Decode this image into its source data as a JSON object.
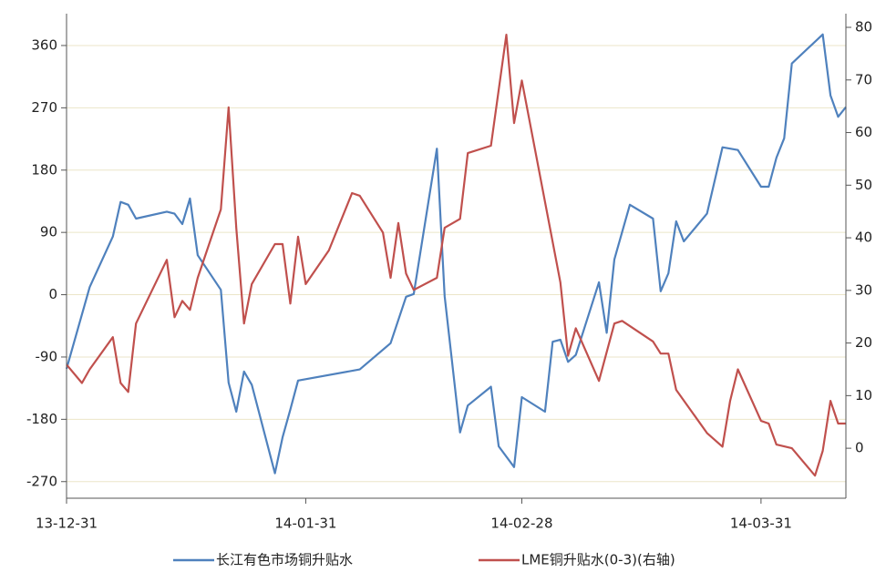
{
  "chart_data": {
    "type": "line",
    "xticks": [
      "13-12-31",
      "14-01-31",
      "14-02-28",
      "14-03-31"
    ],
    "xlim": [
      "13-12-31",
      "14-04-11"
    ],
    "ylim": [
      -294,
      406
    ],
    "yticks": [
      -270,
      -180,
      -90,
      0,
      90,
      180,
      270,
      360
    ],
    "y2lim": [
      -9.5,
      82.6
    ],
    "y2ticks": [
      0,
      10,
      20,
      30,
      40,
      50,
      60,
      70,
      80
    ],
    "grid": true,
    "legend": "bottom",
    "series": [
      {
        "name": "长江有色市场铜升贴水",
        "color": "#4f81bd",
        "x": [
          "13-12-31",
          "14-01-03",
          "14-01-06",
          "14-01-07",
          "14-01-08",
          "14-01-09",
          "14-01-13",
          "14-01-14",
          "14-01-15",
          "14-01-16",
          "14-01-17",
          "14-01-20",
          "14-01-21",
          "14-01-22",
          "14-01-23",
          "14-01-24",
          "14-01-27",
          "14-01-28",
          "14-01-29",
          "14-01-30",
          "14-02-07",
          "14-02-11",
          "14-02-13",
          "14-02-14",
          "14-02-17",
          "14-02-18",
          "14-02-20",
          "14-02-21",
          "14-02-24",
          "14-02-25",
          "14-02-27",
          "14-02-28",
          "14-03-03",
          "14-03-04",
          "14-03-05",
          "14-03-06",
          "14-03-07",
          "14-03-10",
          "14-03-11",
          "14-03-12",
          "14-03-14",
          "14-03-17",
          "14-03-18",
          "14-03-19",
          "14-03-20",
          "14-03-21",
          "14-03-24",
          "14-03-26",
          "14-03-28",
          "14-03-31",
          "14-04-01",
          "14-04-02",
          "14-04-03",
          "14-04-04",
          "14-04-08",
          "14-04-09",
          "14-04-10",
          "14-04-11"
        ],
        "values": [
          -107,
          11,
          84,
          134,
          130,
          110,
          120,
          117,
          102,
          139,
          57,
          7,
          -127,
          -169,
          -111,
          -130,
          -258,
          -206,
          -166,
          -124,
          -108,
          -70,
          -3,
          1,
          211,
          -2,
          -199,
          -160,
          -133,
          -219,
          -249,
          -148,
          -169,
          -68,
          -65,
          -97,
          -87,
          18,
          -55,
          51,
          130,
          110,
          5,
          31,
          106,
          77,
          117,
          213,
          209,
          156,
          156,
          198,
          226,
          334,
          376,
          288,
          257,
          271
        ]
      },
      {
        "name": "LME铜升贴水(0-3)(右轴)",
        "color": "#c0504d",
        "axis": "y2",
        "x": [
          "13-12-31",
          "14-01-02",
          "14-01-03",
          "14-01-06",
          "14-01-07",
          "14-01-08",
          "14-01-09",
          "14-01-13",
          "14-01-14",
          "14-01-15",
          "14-01-16",
          "14-01-17",
          "14-01-20",
          "14-01-21",
          "14-01-22",
          "14-01-23",
          "14-01-24",
          "14-01-27",
          "14-01-28",
          "14-01-29",
          "14-01-30",
          "14-01-31",
          "14-02-03",
          "14-02-06",
          "14-02-07",
          "14-02-10",
          "14-02-11",
          "14-02-12",
          "14-02-13",
          "14-02-14",
          "14-02-17",
          "14-02-18",
          "14-02-20",
          "14-02-21",
          "14-02-24",
          "14-02-26",
          "14-02-27",
          "14-02-28",
          "14-03-05",
          "14-03-06",
          "14-03-07",
          "14-03-10",
          "14-03-12",
          "14-03-13",
          "14-03-17",
          "14-03-18",
          "14-03-19",
          "14-03-20",
          "14-03-24",
          "14-03-26",
          "14-03-27",
          "14-03-28",
          "14-03-31",
          "14-04-01",
          "14-04-02",
          "14-04-04",
          "14-04-07",
          "14-04-08",
          "14-04-09",
          "14-04-10",
          "14-04-11"
        ],
        "values": [
          15.9,
          12.4,
          15,
          21.1,
          12.4,
          10.7,
          23.7,
          35.8,
          24.9,
          28,
          26.3,
          32.4,
          45.4,
          64.8,
          41.9,
          23.7,
          31.2,
          38.8,
          38.8,
          27.5,
          40.2,
          31.2,
          37.6,
          48.5,
          48,
          41,
          32.4,
          42.8,
          33.2,
          30.1,
          32.4,
          41.9,
          43.6,
          56.1,
          57.5,
          78.6,
          61.8,
          69.9,
          31.5,
          17.6,
          22.8,
          12.8,
          23.7,
          24.2,
          20.3,
          18,
          18,
          11.1,
          2.9,
          0.3,
          9,
          15,
          5.2,
          4.7,
          0.7,
          0,
          -5.2,
          -0.5,
          9,
          4.7,
          4.7
        ]
      }
    ]
  }
}
